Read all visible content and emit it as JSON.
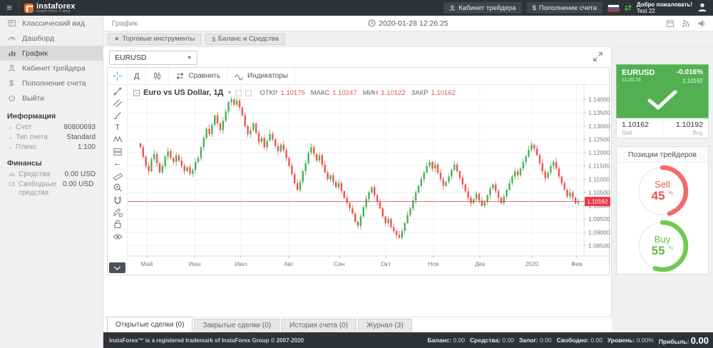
{
  "header": {
    "logo_text": "instaforex",
    "logo_tagline": "Instant Forex Trading",
    "cabinet_button": "Кабинет трейдера",
    "deposit_button": "Пополнение счета",
    "welcome_line1": "Добро пожаловать!",
    "welcome_line2": "Test 22"
  },
  "sidebar": {
    "items": [
      {
        "label": "Классический вид"
      },
      {
        "label": "Дашборд"
      },
      {
        "label": "График"
      },
      {
        "label": "Кабинет трейдера"
      },
      {
        "label": "Пополнение счета"
      },
      {
        "label": "Выйти"
      }
    ],
    "info_title": "Информация",
    "info_rows": [
      {
        "label": "Счет",
        "value": "80800693"
      },
      {
        "label": "Тип счета",
        "value": "Standard"
      },
      {
        "label": "Плечо",
        "value": "1:100"
      }
    ],
    "finance_title": "Финансы",
    "finance_rows": [
      {
        "label": "Средства",
        "value": "0.00 USD"
      },
      {
        "label": "Свободные средства",
        "value": "0.00 USD"
      }
    ]
  },
  "topbar": {
    "page_title": "График",
    "datetime": "2020-01-28 12:26:25"
  },
  "actionbar": {
    "instruments_button": "Торговые инструменты",
    "balance_button": "Баланс и Средства"
  },
  "chart": {
    "symbol_select": "EURUSD",
    "timeframe_button": "Д",
    "compare_button": "Сравнить",
    "indicators_button": "Индикаторы",
    "title": "Euro vs US Dollar, 1Д",
    "ohlc": {
      "open_label": "ОТКР",
      "open": "1.10175",
      "high_label": "МАКС",
      "high": "1.10247",
      "low_label": "МИН",
      "low": "1.10122",
      "close_label": "ЗАКР",
      "close": "1.10162"
    },
    "tools": [
      "crosshair",
      "trend-line",
      "parallel-channel",
      "brush",
      "text",
      "xabcd-pattern",
      "long-position",
      "back",
      "ruler",
      "zoom-in",
      "magnet",
      "draw-lock",
      "lock",
      "eye",
      "more"
    ]
  },
  "chart_data": {
    "type": "candlestick",
    "symbol": "EURUSD",
    "timeframe": "1Д",
    "title": "Euro vs US Dollar, 1Д",
    "last_candle": {
      "open": 1.10175,
      "high": 1.10247,
      "low": 1.10122,
      "close": 1.10162
    },
    "last_price": 1.10162,
    "last_price_label": "1.10162",
    "change_pct": "-0.016%",
    "ylim": [
      1.0811,
      1.1455
    ],
    "y_tick_labels": [
      "1.14000",
      "1.13500",
      "1.13000",
      "1.12500",
      "1.12000",
      "1.11500",
      "1.11000",
      "1.10500",
      "1.10000",
      "1.09500",
      "1.09000",
      "1.08500"
    ],
    "x_ticks": [
      {
        "label": "Май",
        "pos": 0.042
      },
      {
        "label": "Июн",
        "pos": 0.147
      },
      {
        "label": "Июл",
        "pos": 0.248
      },
      {
        "label": "Авг",
        "pos": 0.353
      },
      {
        "label": "Сен",
        "pos": 0.464
      },
      {
        "label": "Окт",
        "pos": 0.566
      },
      {
        "label": "Ноя",
        "pos": 0.67
      },
      {
        "label": "Дек",
        "pos": 0.772
      },
      {
        "label": "2020",
        "pos": 0.886
      },
      {
        "label": "Фев",
        "pos": 0.984
      }
    ],
    "open_first": 1.1235,
    "avg_range": 0.0028,
    "closes": [
      1.122,
      1.1185,
      1.115,
      1.113,
      1.1175,
      1.1195,
      1.116,
      1.1125,
      1.115,
      1.1185,
      1.1205,
      1.118,
      1.1165,
      1.119,
      1.117,
      1.115,
      1.113,
      1.1145,
      1.112,
      1.1135,
      1.1165,
      1.118,
      1.122,
      1.1255,
      1.129,
      1.127,
      1.1305,
      1.134,
      1.131,
      1.1285,
      1.132,
      1.1355,
      1.139,
      1.14,
      1.138,
      1.1395,
      1.137,
      1.134,
      1.13,
      1.127,
      1.1285,
      1.131,
      1.1275,
      1.124,
      1.1255,
      1.122,
      1.1245,
      1.127,
      1.125,
      1.1225,
      1.1205,
      1.123,
      1.121,
      1.118,
      1.115,
      1.112,
      1.1085,
      1.106,
      1.109,
      1.113,
      1.116,
      1.12,
      1.122,
      1.1195,
      1.117,
      1.119,
      1.1155,
      1.1125,
      1.11,
      1.1115,
      1.109,
      1.107,
      1.1085,
      1.1055,
      1.103,
      1.101,
      1.099,
      1.097,
      1.094,
      1.0925,
      1.096,
      1.0995,
      1.1025,
      1.105,
      1.107,
      1.104,
      1.1015,
      1.099,
      1.096,
      1.0935,
      1.095,
      1.092,
      1.0905,
      1.089,
      1.088,
      1.0905,
      1.0935,
      1.0965,
      1.099,
      1.102,
      1.105,
      1.1075,
      1.11,
      1.1125,
      1.115,
      1.1165,
      1.114,
      1.1155,
      1.1125,
      1.11,
      1.1075,
      1.109,
      1.111,
      1.1135,
      1.1155,
      1.113,
      1.1105,
      1.108,
      1.1055,
      1.103,
      1.101,
      1.1025,
      1.1045,
      1.102,
      1.1,
      1.1015,
      1.104,
      1.1065,
      1.108,
      1.1055,
      1.103,
      1.101,
      1.1035,
      1.106,
      1.1085,
      1.111,
      1.113,
      1.1115,
      1.114,
      1.1165,
      1.1185,
      1.121,
      1.123,
      1.1215,
      1.119,
      1.116,
      1.113,
      1.1105,
      1.1125,
      1.115,
      1.1165,
      1.114,
      1.111,
      1.1085,
      1.106,
      1.1035,
      1.105,
      1.103,
      1.101,
      1.10162
    ],
    "colors": {
      "up": "#4caf50",
      "down": "#ef5350",
      "last_price_line": "#f23645",
      "grid": "#eef2f7",
      "axis_text": "#75797e"
    }
  },
  "quote": {
    "symbol": "EURUSD",
    "time": "11:26:16",
    "change": "-0.016%",
    "price": "1.10162",
    "sell_price": "1.10162",
    "sell_label": "Sell",
    "buy_price": "1.10192",
    "buy_label": "Buy"
  },
  "positions": {
    "title": "Позиции трейдеров",
    "sell_label": "Sell",
    "sell_pct": "45",
    "sell_value": 45,
    "buy_label": "Buy",
    "buy_pct": "55",
    "buy_value": 55,
    "pct_sign": "%"
  },
  "tabs": [
    {
      "label": "Открытые сделки (0)"
    },
    {
      "label": "Закрытые сделки (0)"
    },
    {
      "label": "История счета (0)"
    },
    {
      "label": "Журнал (3)"
    }
  ],
  "footer": {
    "copyright": "InstaForex™ is a registered trademark of InstaForex Group © 2007-2020",
    "stats": [
      {
        "label": "Баланс:",
        "value": "0.00"
      },
      {
        "label": "Средства:",
        "value": "0.00"
      },
      {
        "label": "Залог:",
        "value": "0.00"
      },
      {
        "label": "Свободно:",
        "value": "0.00"
      },
      {
        "label": "Уровень:",
        "value": "0.00%"
      },
      {
        "label": "Прибыль:",
        "value": "0.00"
      }
    ]
  }
}
